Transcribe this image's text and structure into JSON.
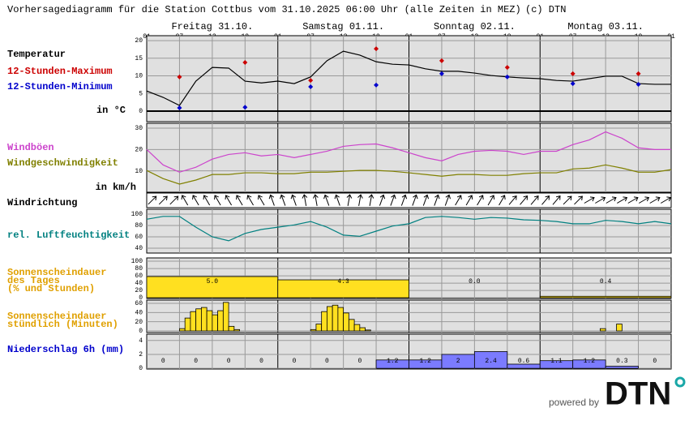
{
  "header": {
    "title": "Vorhersagediagramm für die Station Cottbus vom 31.10.2025 06:00 Uhr (alle Zeiten in MEZ)",
    "credit": "(c) DTN",
    "days": [
      "Freitag 31.10.",
      "Samstag 01.11.",
      "Sonntag 02.11.",
      "Montag 03.11."
    ],
    "hours": [
      "01",
      "07",
      "13",
      "19",
      "01",
      "07",
      "13",
      "19",
      "01",
      "07",
      "13",
      "19",
      "01",
      "07",
      "13",
      "19",
      "01"
    ]
  },
  "footer": {
    "powered_by": "powered by",
    "logo": "DTN"
  },
  "chart_data": [
    {
      "type": "line",
      "unit": "in °C",
      "ylim": [
        -3,
        21.4
      ],
      "yticks": [
        0,
        5,
        10,
        15,
        20
      ],
      "zero_line": true,
      "series": [
        {
          "name": "Temperatur",
          "color": "#000000",
          "values": [
            5.7,
            3.9,
            1.6,
            8.5,
            12.4,
            12.2,
            8.5,
            8.0,
            8.5,
            7.8,
            9.7,
            14.3,
            17.0,
            15.9,
            14.0,
            13.3,
            13.1,
            12.0,
            11.3,
            11.3,
            10.8,
            10.1,
            9.7,
            9.4,
            9.2,
            8.7,
            8.5,
            9.2,
            9.9,
            9.9,
            7.8,
            7.6,
            7.6
          ]
        },
        {
          "name": "12-Stunden-Maximum",
          "color": "#cc0000",
          "marker": "points",
          "values": [
            9.7,
            13.8,
            8.7,
            17.7,
            14.3,
            12.4,
            10.6,
            10.6
          ]
        },
        {
          "name": "12-Stunden-Minimum",
          "color": "#0000cc",
          "marker": "points",
          "values": [
            0.9,
            1.1,
            6.9,
            7.4,
            10.6,
            9.7,
            7.8,
            7.6
          ]
        }
      ]
    },
    {
      "type": "line",
      "unit": "in km/h",
      "ylim": [
        0,
        32.3
      ],
      "yticks": [
        10,
        20,
        30
      ],
      "series": [
        {
          "name": "Windböen",
          "color": "#cc44cc",
          "values": [
            20,
            12.8,
            9.4,
            11.7,
            15.5,
            17.7,
            18.5,
            17,
            17.7,
            16.2,
            17.7,
            19.2,
            21.5,
            22.3,
            22.6,
            20.8,
            18.5,
            16.2,
            14.7,
            17.7,
            19.2,
            19.6,
            19.2,
            17.7,
            19.2,
            19.2,
            22.3,
            24.5,
            28.3,
            25.3,
            20.8,
            20,
            20
          ]
        },
        {
          "name": "Windgeschwindigkeit",
          "color": "#808000",
          "values": [
            10.2,
            6.4,
            3.8,
            5.7,
            8.3,
            8.3,
            9.1,
            9.1,
            8.7,
            8.7,
            9.4,
            9.4,
            9.8,
            10.2,
            10.2,
            9.8,
            9.1,
            8.3,
            7.5,
            8.3,
            8.3,
            7.9,
            7.9,
            8.7,
            9.1,
            9.1,
            10.9,
            11.3,
            12.8,
            11.3,
            9.4,
            9.4,
            10.6
          ]
        }
      ]
    },
    {
      "type": "arrows",
      "label": "Windrichtung",
      "values": [
        45,
        45,
        45,
        330,
        330,
        330,
        330,
        330,
        330,
        330,
        330,
        340,
        340,
        340,
        350,
        350,
        340,
        340,
        10,
        10,
        10,
        20,
        20,
        20,
        20,
        20,
        20,
        20,
        30,
        30,
        30,
        30,
        30,
        40,
        40,
        40,
        40,
        40,
        45,
        45,
        60,
        60,
        60,
        60,
        60,
        60,
        60,
        60
      ]
    },
    {
      "type": "line",
      "ylim": [
        31.4,
        108.6
      ],
      "yticks": [
        40,
        60,
        80,
        100
      ],
      "series": [
        {
          "name": "rel. Luftfeuchtigkeit",
          "color": "#008080",
          "values": [
            91,
            96,
            96,
            77,
            60,
            53,
            66,
            73,
            77,
            81,
            87,
            77,
            63,
            61,
            70,
            79,
            83,
            94,
            96,
            94,
            91,
            94,
            93,
            90,
            89,
            87,
            83,
            83,
            89,
            87,
            83,
            87,
            83
          ]
        }
      ]
    },
    {
      "type": "bar",
      "label_lines": [
        "Sonnenscheindauer",
        "des Tages",
        "(% und Stunden)"
      ],
      "label_color": "#e0a000",
      "color": "#ffe020",
      "ylim": [
        -2,
        109
      ],
      "yticks": [
        0,
        20,
        40,
        60,
        80,
        100
      ],
      "values": [
        58,
        49,
        0,
        4
      ],
      "hour_labels": [
        "5.0",
        "4.3",
        "0.0",
        "0.4"
      ]
    },
    {
      "type": "bar",
      "label_lines": [
        "Sonnenscheindauer",
        "stündlich (Minuten)"
      ],
      "label_color": "#e0a000",
      "color": "#ffe020",
      "ylim": [
        -3.5,
        67
      ],
      "yticks": [
        0,
        20,
        40,
        60
      ],
      "values": [
        0,
        0,
        0,
        0,
        0,
        0,
        5,
        28,
        42,
        48,
        51,
        44,
        35,
        44,
        62,
        10,
        3,
        0,
        0,
        0,
        0,
        0,
        0,
        0,
        0,
        0,
        0,
        0,
        0,
        0,
        3,
        15,
        42,
        53,
        56,
        51,
        39,
        25,
        14,
        7,
        2,
        0,
        0,
        0,
        0,
        0,
        0,
        0,
        0,
        0,
        0,
        0,
        0,
        0,
        0,
        0,
        0,
        0,
        0,
        0,
        0,
        0,
        0,
        0,
        0,
        0,
        0,
        0,
        0,
        0,
        0,
        0,
        0,
        0,
        0,
        0,
        0,
        0,
        0,
        0,
        0,
        0,
        0,
        5,
        0,
        0,
        15,
        0,
        0,
        0,
        0,
        0,
        0,
        0,
        0,
        0
      ]
    },
    {
      "type": "bar",
      "label_lines": [
        "Niederschlag 6h (mm)"
      ],
      "label_color": "#0000cc",
      "color": "#7b7bff",
      "show_values": true,
      "ylim": [
        -0.1,
        4.9
      ],
      "yticks": [
        0,
        2,
        4
      ],
      "values": [
        0,
        0,
        0,
        0,
        0,
        0,
        0,
        1.2,
        1.2,
        2,
        2.4,
        0.6,
        1.1,
        1.2,
        0.3,
        0
      ]
    }
  ]
}
